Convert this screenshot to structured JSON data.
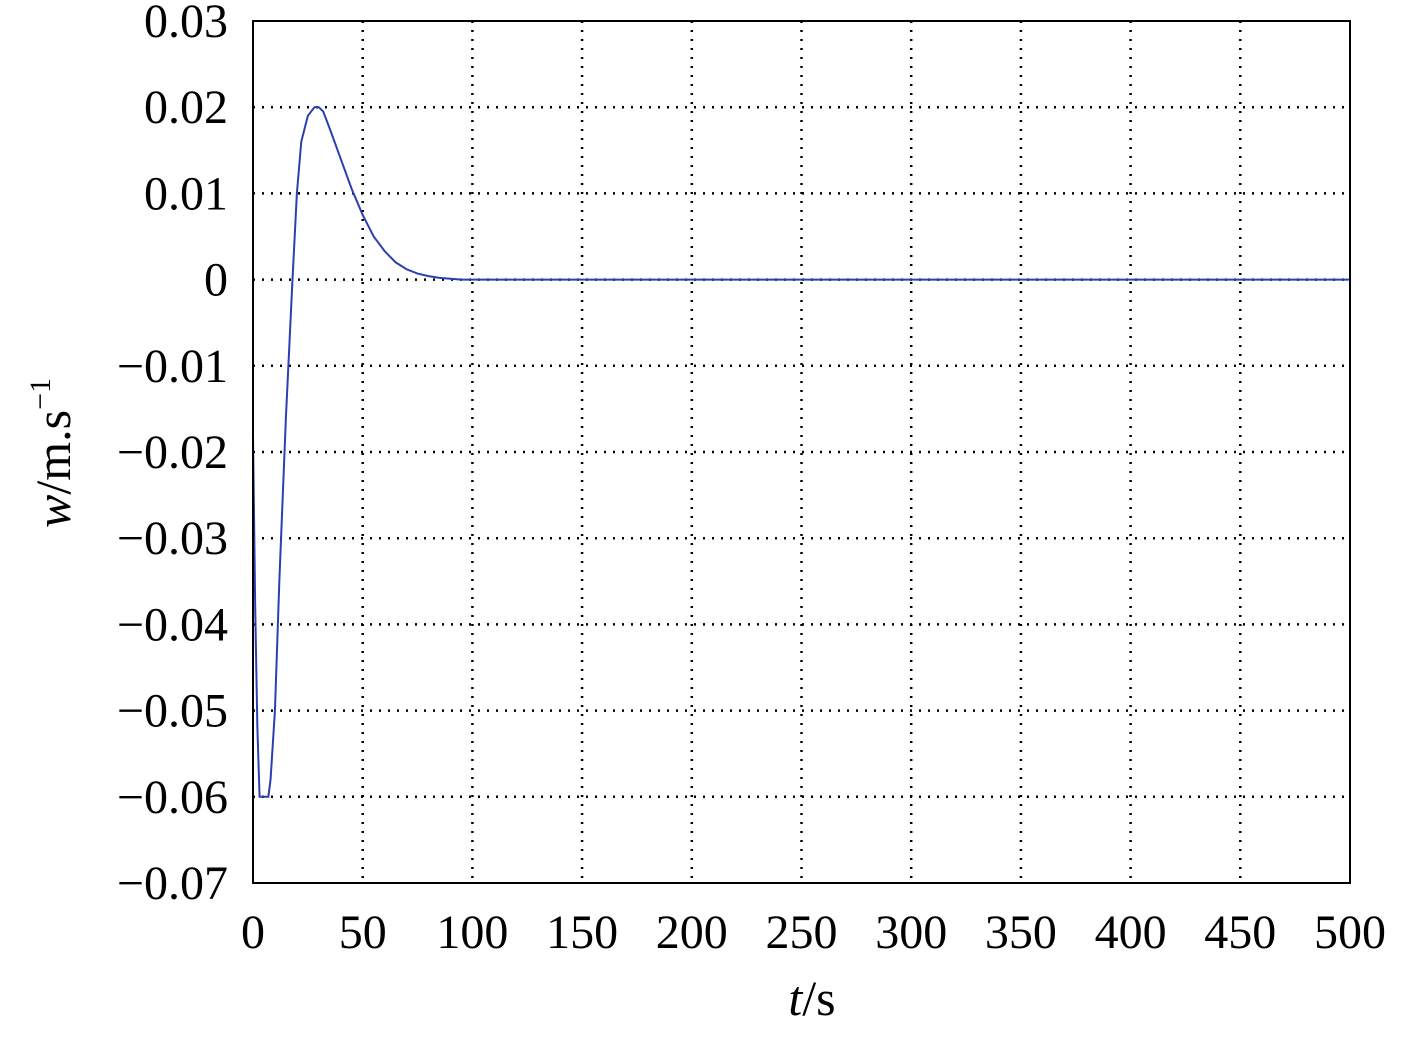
{
  "chart_data": {
    "type": "line",
    "title": "",
    "xlabel": {
      "var": "t",
      "unit": "/s"
    },
    "ylabel": {
      "var": "w",
      "unit": "/m.s",
      "sup": "−1"
    },
    "xlim": [
      0,
      500
    ],
    "ylim": [
      -0.07,
      0.03
    ],
    "xticks": [
      "0",
      "50",
      "100",
      "150",
      "200",
      "250",
      "300",
      "350",
      "400",
      "450",
      "500"
    ],
    "yticks": [
      "0.03",
      "0.02",
      "0.01",
      "0",
      "−0.01",
      "−0.02",
      "−0.03",
      "−0.04",
      "−0.05",
      "−0.06",
      "−0.07"
    ],
    "grid": true,
    "series": [
      {
        "color": "#2b3fb0",
        "x": [
          0,
          1,
          2,
          3,
          5,
          7,
          8,
          10,
          12,
          15,
          18,
          20,
          22,
          25,
          28,
          30,
          32,
          35,
          40,
          45,
          50,
          55,
          60,
          65,
          70,
          75,
          80,
          85,
          90,
          95,
          100,
          150,
          200,
          250,
          300,
          350,
          400,
          450,
          500
        ],
        "y": [
          -0.018,
          -0.038,
          -0.052,
          -0.06,
          -0.06,
          -0.06,
          -0.058,
          -0.05,
          -0.035,
          -0.016,
          0.0,
          0.01,
          0.016,
          0.019,
          0.02,
          0.02,
          0.0195,
          0.0175,
          0.014,
          0.0105,
          0.0075,
          0.005,
          0.0033,
          0.002,
          0.0012,
          0.0007,
          0.0004,
          0.0002,
          0.0001,
          0.0,
          0.0,
          0.0,
          0.0,
          0.0,
          0.0,
          0.0,
          0.0,
          0.0,
          0.0
        ]
      }
    ]
  }
}
